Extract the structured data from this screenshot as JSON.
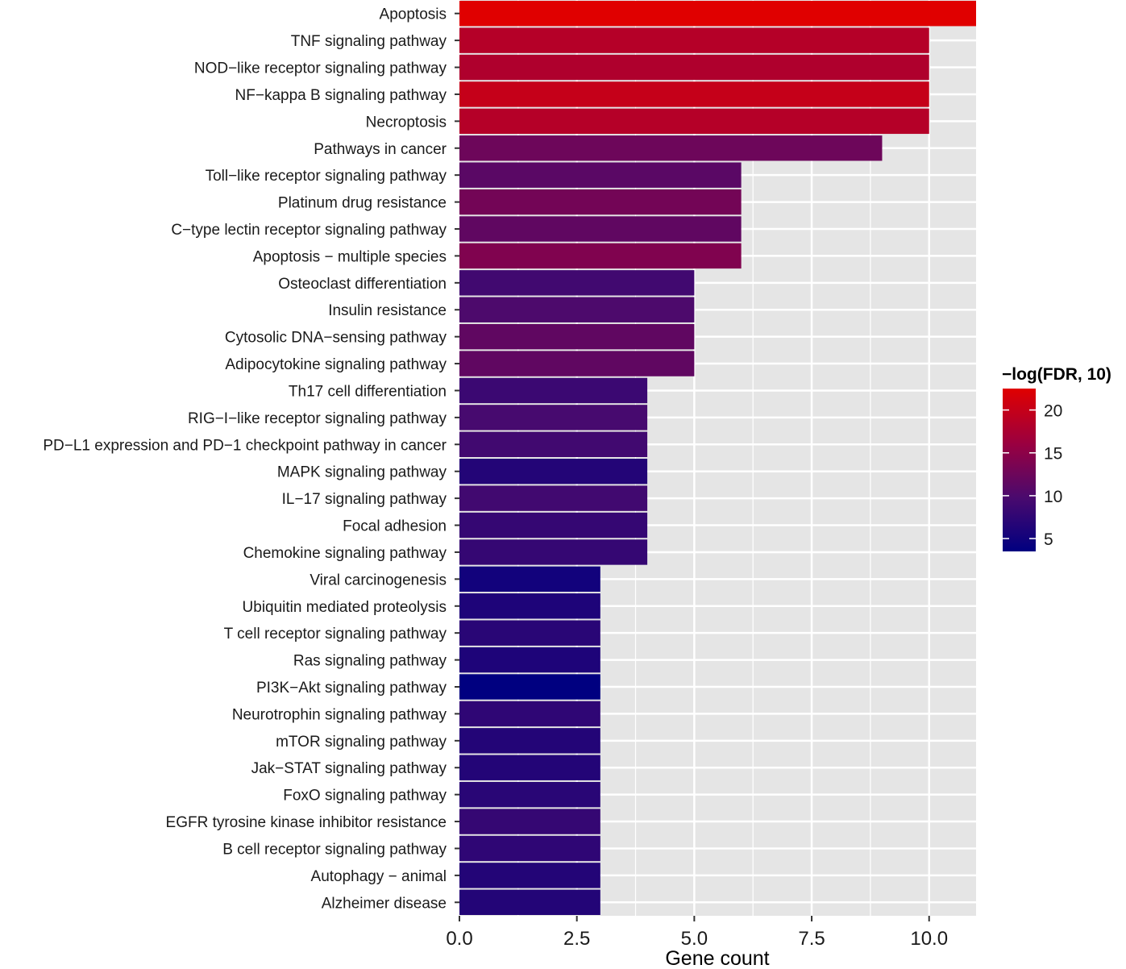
{
  "chart_data": {
    "type": "bar",
    "orientation": "horizontal",
    "xlabel": "Gene count",
    "ylabel": "",
    "title": "",
    "xlim": [
      0,
      11
    ],
    "x_ticks": [
      "0.0",
      "2.5",
      "5.0",
      "7.5",
      "10.0"
    ],
    "x_tick_values": [
      0,
      2.5,
      5,
      7.5,
      10
    ],
    "grid": true,
    "legend_placement": "right",
    "color_scale": {
      "title": "−log(FDR, 10)",
      "low_color": "#000080",
      "high_color": "#e00000",
      "min": 3.5,
      "max": 22.5,
      "ticks": [
        "5",
        "10",
        "15",
        "20"
      ],
      "tick_values": [
        5,
        10,
        15,
        20
      ]
    },
    "categories": [
      "Apoptosis",
      "TNF signaling pathway",
      "NOD−like receptor signaling pathway",
      "NF−kappa B signaling pathway",
      "Necroptosis",
      "Pathways in cancer",
      "Toll−like receptor signaling pathway",
      "Platinum drug resistance",
      "C−type lectin receptor signaling pathway",
      "Apoptosis − multiple species",
      "Osteoclast differentiation",
      "Insulin resistance",
      "Cytosolic DNA−sensing pathway",
      "Adipocytokine signaling pathway",
      "Th17 cell differentiation",
      "RIG−I−like receptor signaling pathway",
      "PD−L1 expression and PD−1 checkpoint pathway in cancer",
      "MAPK signaling pathway",
      "IL−17 signaling pathway",
      "Focal adhesion",
      "Chemokine signaling pathway",
      "Viral carcinogenesis",
      "Ubiquitin mediated proteolysis",
      "T cell receptor signaling pathway",
      "Ras signaling pathway",
      "PI3K−Akt signaling pathway",
      "Neurotrophin signaling pathway",
      "mTOR signaling pathway",
      "Jak−STAT signaling pathway",
      "FoxO signaling pathway",
      "EGFR tyrosine kinase inhibitor resistance",
      "B cell receptor signaling pathway",
      "Autophagy − animal",
      "Alzheimer disease"
    ],
    "values": [
      11,
      10,
      10,
      10,
      10,
      9,
      6,
      6,
      6,
      6,
      5,
      5,
      5,
      5,
      4,
      4,
      4,
      4,
      4,
      4,
      4,
      3,
      3,
      3,
      3,
      3,
      3,
      3,
      3,
      3,
      3,
      3,
      3,
      3
    ],
    "neg_log_fdr": [
      22.5,
      18.5,
      18,
      20,
      18.5,
      12.5,
      11,
      13,
      11.5,
      14,
      9,
      10,
      11.5,
      11.5,
      8.5,
      9.5,
      9,
      6.5,
      9,
      8,
      8,
      5,
      6,
      7,
      6,
      3.5,
      7.5,
      6.5,
      6.5,
      7,
      8,
      7.5,
      6.5,
      6.5
    ]
  }
}
